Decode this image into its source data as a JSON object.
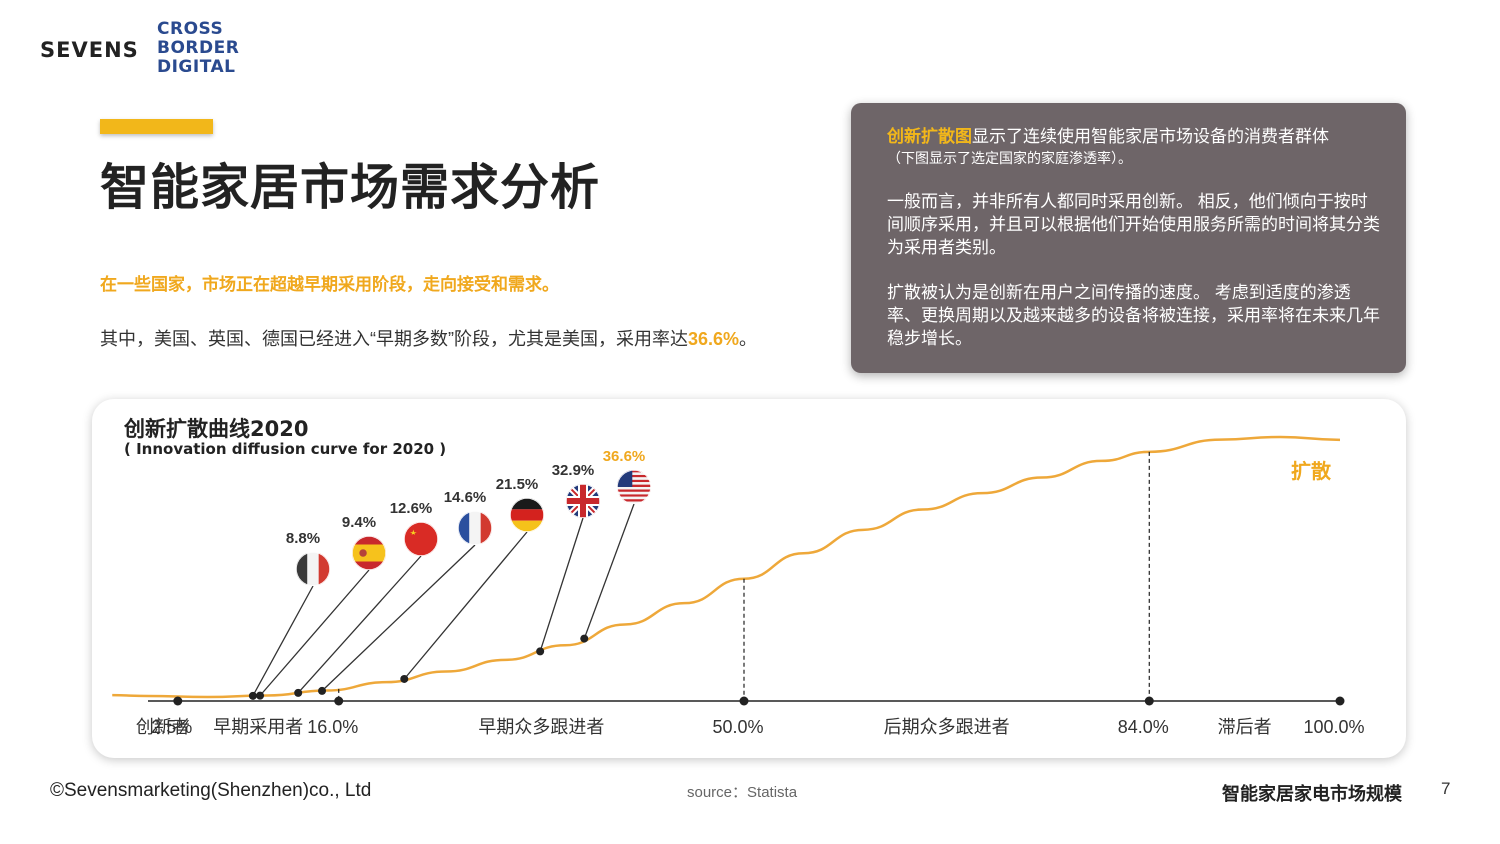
{
  "logo": {
    "brand": "SEVENS",
    "sub_line1": "CROSS",
    "sub_line2": "BORDER",
    "sub_line3": "DIGITAL"
  },
  "page_title": "智能家居市场需求分析",
  "highlight_text": "在一些国家，市场正在超越早期采用阶段，走向接受和需求。",
  "body_line": {
    "prefix": "其中，美国、英国、德国已经进入“早期多数”阶段，尤其是美国，采用率达",
    "value": "36.6%",
    "suffix": "。"
  },
  "info_box": {
    "keyword": "创新扩散图",
    "line1_rest": "显示了连续使用智能家居市场设备的消费者群体",
    "line2": "（下图显示了选定国家的家庭渗透率）。",
    "para2": "一般而言，并非所有人都同时采用创新。 相反，他们倾向于按时间顺序采用，并且可以根据他们开始使用服务所需的时间将其分类为采用者类别。",
    "para3": "扩散被认为是创新在用户之间传播的速度。 考虑到适度的渗透率、更换周期以及越来越多的设备将被连接，采用率将在未来几年稳步增长。"
  },
  "chart_data": {
    "type": "line",
    "title": "创新扩散曲线2020",
    "subtitle": "( Innovation diffusion curve for 2020 )",
    "curve_label": "扩散",
    "x_ticks": [
      "2.5%",
      "16.0%",
      "50.0%",
      "84.0%",
      "100.0%"
    ],
    "x_tick_values": [
      2.5,
      16.0,
      50.0,
      84.0,
      100.0
    ],
    "categories": [
      "创新者",
      "早期采用者",
      "早期众多跟进者",
      "后期众多跟进者",
      "滞后者"
    ],
    "xlim": [
      0,
      100
    ],
    "ylim": [
      0,
      100
    ],
    "curve": [
      [
        -3,
        0.7
      ],
      [
        0,
        0.4
      ],
      [
        5,
        0.0
      ],
      [
        10,
        0.6
      ],
      [
        15,
        2.5
      ],
      [
        20,
        5.7
      ],
      [
        25,
        9.8
      ],
      [
        30,
        14.3
      ],
      [
        35,
        19.9
      ],
      [
        40,
        27.9
      ],
      [
        45,
        36.1
      ],
      [
        50,
        45.5
      ],
      [
        55,
        55.3
      ],
      [
        60,
        64.3
      ],
      [
        65,
        72.1
      ],
      [
        70,
        78.4
      ],
      [
        75,
        84.4
      ],
      [
        80,
        90.8
      ],
      [
        84,
        94.3
      ],
      [
        90,
        99.0
      ],
      [
        95,
        100.0
      ],
      [
        100,
        98.9
      ]
    ],
    "series": [
      {
        "name": "意大利",
        "value": 8.8,
        "label": "8.8%",
        "flag": "italy"
      },
      {
        "name": "西班牙",
        "value": 9.4,
        "label": "9.4%",
        "flag": "spain"
      },
      {
        "name": "中国",
        "value": 12.6,
        "label": "12.6%",
        "flag": "china"
      },
      {
        "name": "法国",
        "value": 14.6,
        "label": "14.6%",
        "flag": "france"
      },
      {
        "name": "德国",
        "value": 21.5,
        "label": "21.5%",
        "flag": "germany"
      },
      {
        "name": "英国",
        "value": 32.9,
        "label": "32.9%",
        "flag": "uk"
      },
      {
        "name": "美国",
        "value": 36.6,
        "label": "36.6%",
        "flag": "usa",
        "highlight": true
      }
    ],
    "colors": {
      "curve": "#eea83a",
      "highlight": "#f0a81e",
      "axis": "#222222",
      "label": "#333333"
    }
  },
  "footer": {
    "copyright": "©Sevensmarketing(Shenzhen)co., Ltd",
    "source": "source：Statista",
    "title": "智能家居家电市场规模",
    "page": "7"
  }
}
